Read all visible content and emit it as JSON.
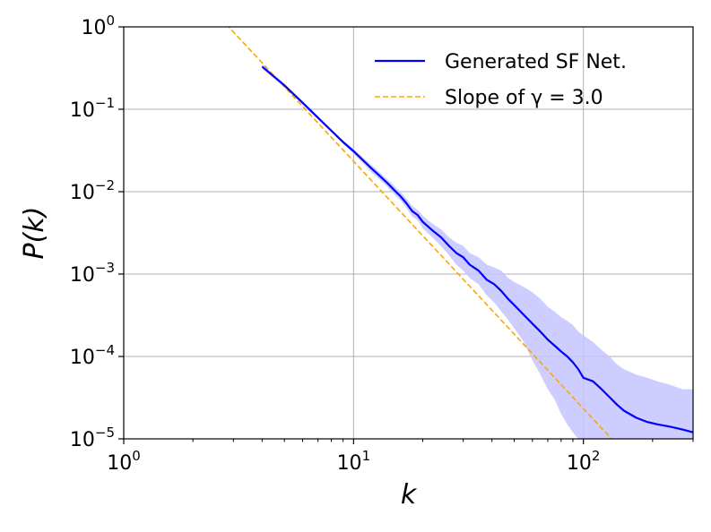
{
  "chart_data": {
    "type": "line",
    "title": "",
    "xlabel": "k",
    "ylabel": "P(k)",
    "xscale": "log",
    "yscale": "log",
    "xlim": [
      1,
      300
    ],
    "ylim": [
      1e-05,
      1
    ],
    "grid": true,
    "legend_position": "top-right",
    "x_ticks": [
      {
        "value": 1,
        "base": "10",
        "exp": "0"
      },
      {
        "value": 10,
        "base": "10",
        "exp": "1"
      },
      {
        "value": 100,
        "base": "10",
        "exp": "2"
      }
    ],
    "y_ticks": [
      {
        "value": 1,
        "base": "10",
        "exp": "0"
      },
      {
        "value": 0.1,
        "base": "10",
        "exp": "−1"
      },
      {
        "value": 0.01,
        "base": "10",
        "exp": "−2"
      },
      {
        "value": 0.001,
        "base": "10",
        "exp": "−3"
      },
      {
        "value": 0.0001,
        "base": "10",
        "exp": "−4"
      },
      {
        "value": 1e-05,
        "base": "10",
        "exp": "−5"
      }
    ],
    "series": [
      {
        "name": "Generated SF Net.",
        "style": "solid",
        "color": "#0000ff",
        "band_color": "#c4c4ff",
        "x": [
          4,
          5,
          6,
          7,
          8,
          9,
          10,
          11,
          12,
          13,
          14,
          15,
          16,
          17,
          18,
          19,
          20,
          22,
          24,
          26,
          28,
          30,
          32,
          35,
          38,
          41,
          44,
          47,
          50,
          55,
          60,
          65,
          70,
          75,
          80,
          85,
          90,
          95,
          100,
          110,
          120,
          130,
          140,
          150,
          170,
          190,
          210,
          240,
          270,
          300
        ],
        "y": [
          0.33,
          0.195,
          0.12,
          0.079,
          0.055,
          0.04,
          0.031,
          0.024,
          0.019,
          0.0155,
          0.0128,
          0.0105,
          0.0088,
          0.0072,
          0.0058,
          0.0052,
          0.0043,
          0.0034,
          0.0028,
          0.0022,
          0.0018,
          0.0016,
          0.0013,
          0.0011,
          0.00085,
          0.00075,
          0.00062,
          0.0005,
          0.00042,
          0.00032,
          0.00025,
          0.0002,
          0.00016,
          0.000135,
          0.000115,
          0.0001,
          8.5e-05,
          7e-05,
          5.5e-05,
          5e-05,
          4e-05,
          3.2e-05,
          2.6e-05,
          2.2e-05,
          1.8e-05,
          1.6e-05,
          1.5e-05,
          1.4e-05,
          1.3e-05,
          1.2e-05
        ],
        "y_low": [
          0.31,
          0.185,
          0.115,
          0.076,
          0.053,
          0.038,
          0.029,
          0.022,
          0.017,
          0.014,
          0.0115,
          0.0093,
          0.0078,
          0.0063,
          0.005,
          0.0045,
          0.0036,
          0.0028,
          0.0022,
          0.0017,
          0.0013,
          0.0011,
          0.0009,
          0.00075,
          0.00055,
          0.00045,
          0.00035,
          0.00028,
          0.00022,
          0.00015,
          9e-05,
          6e-05,
          4e-05,
          3e-05,
          2e-05,
          1.5e-05,
          1.2e-05,
          1e-05,
          1e-05,
          1e-05,
          1e-05,
          1e-05,
          1e-05,
          1e-05,
          1e-05,
          1e-05,
          1e-05,
          1e-05,
          1e-05,
          1e-05
        ],
        "y_high": [
          0.35,
          0.205,
          0.125,
          0.082,
          0.057,
          0.042,
          0.033,
          0.026,
          0.021,
          0.017,
          0.0142,
          0.0118,
          0.0099,
          0.0082,
          0.0067,
          0.006,
          0.0051,
          0.0041,
          0.0035,
          0.0028,
          0.0024,
          0.0022,
          0.0018,
          0.0016,
          0.0013,
          0.0012,
          0.0011,
          0.0009,
          0.0008,
          0.0007,
          0.0006,
          0.0005,
          0.0004,
          0.00035,
          0.0003,
          0.00027,
          0.00024,
          0.0002,
          0.00018,
          0.00015,
          0.00012,
          0.0001,
          8e-05,
          7e-05,
          6e-05,
          5.5e-05,
          5e-05,
          4.5e-05,
          4e-05,
          4e-05
        ]
      },
      {
        "name": "Slope of γ = 3.0",
        "style": "dashed",
        "color": "#ffa500",
        "x": [
          2.5,
          150
        ],
        "y": [
          1.5,
          6.9e-06
        ]
      }
    ]
  }
}
